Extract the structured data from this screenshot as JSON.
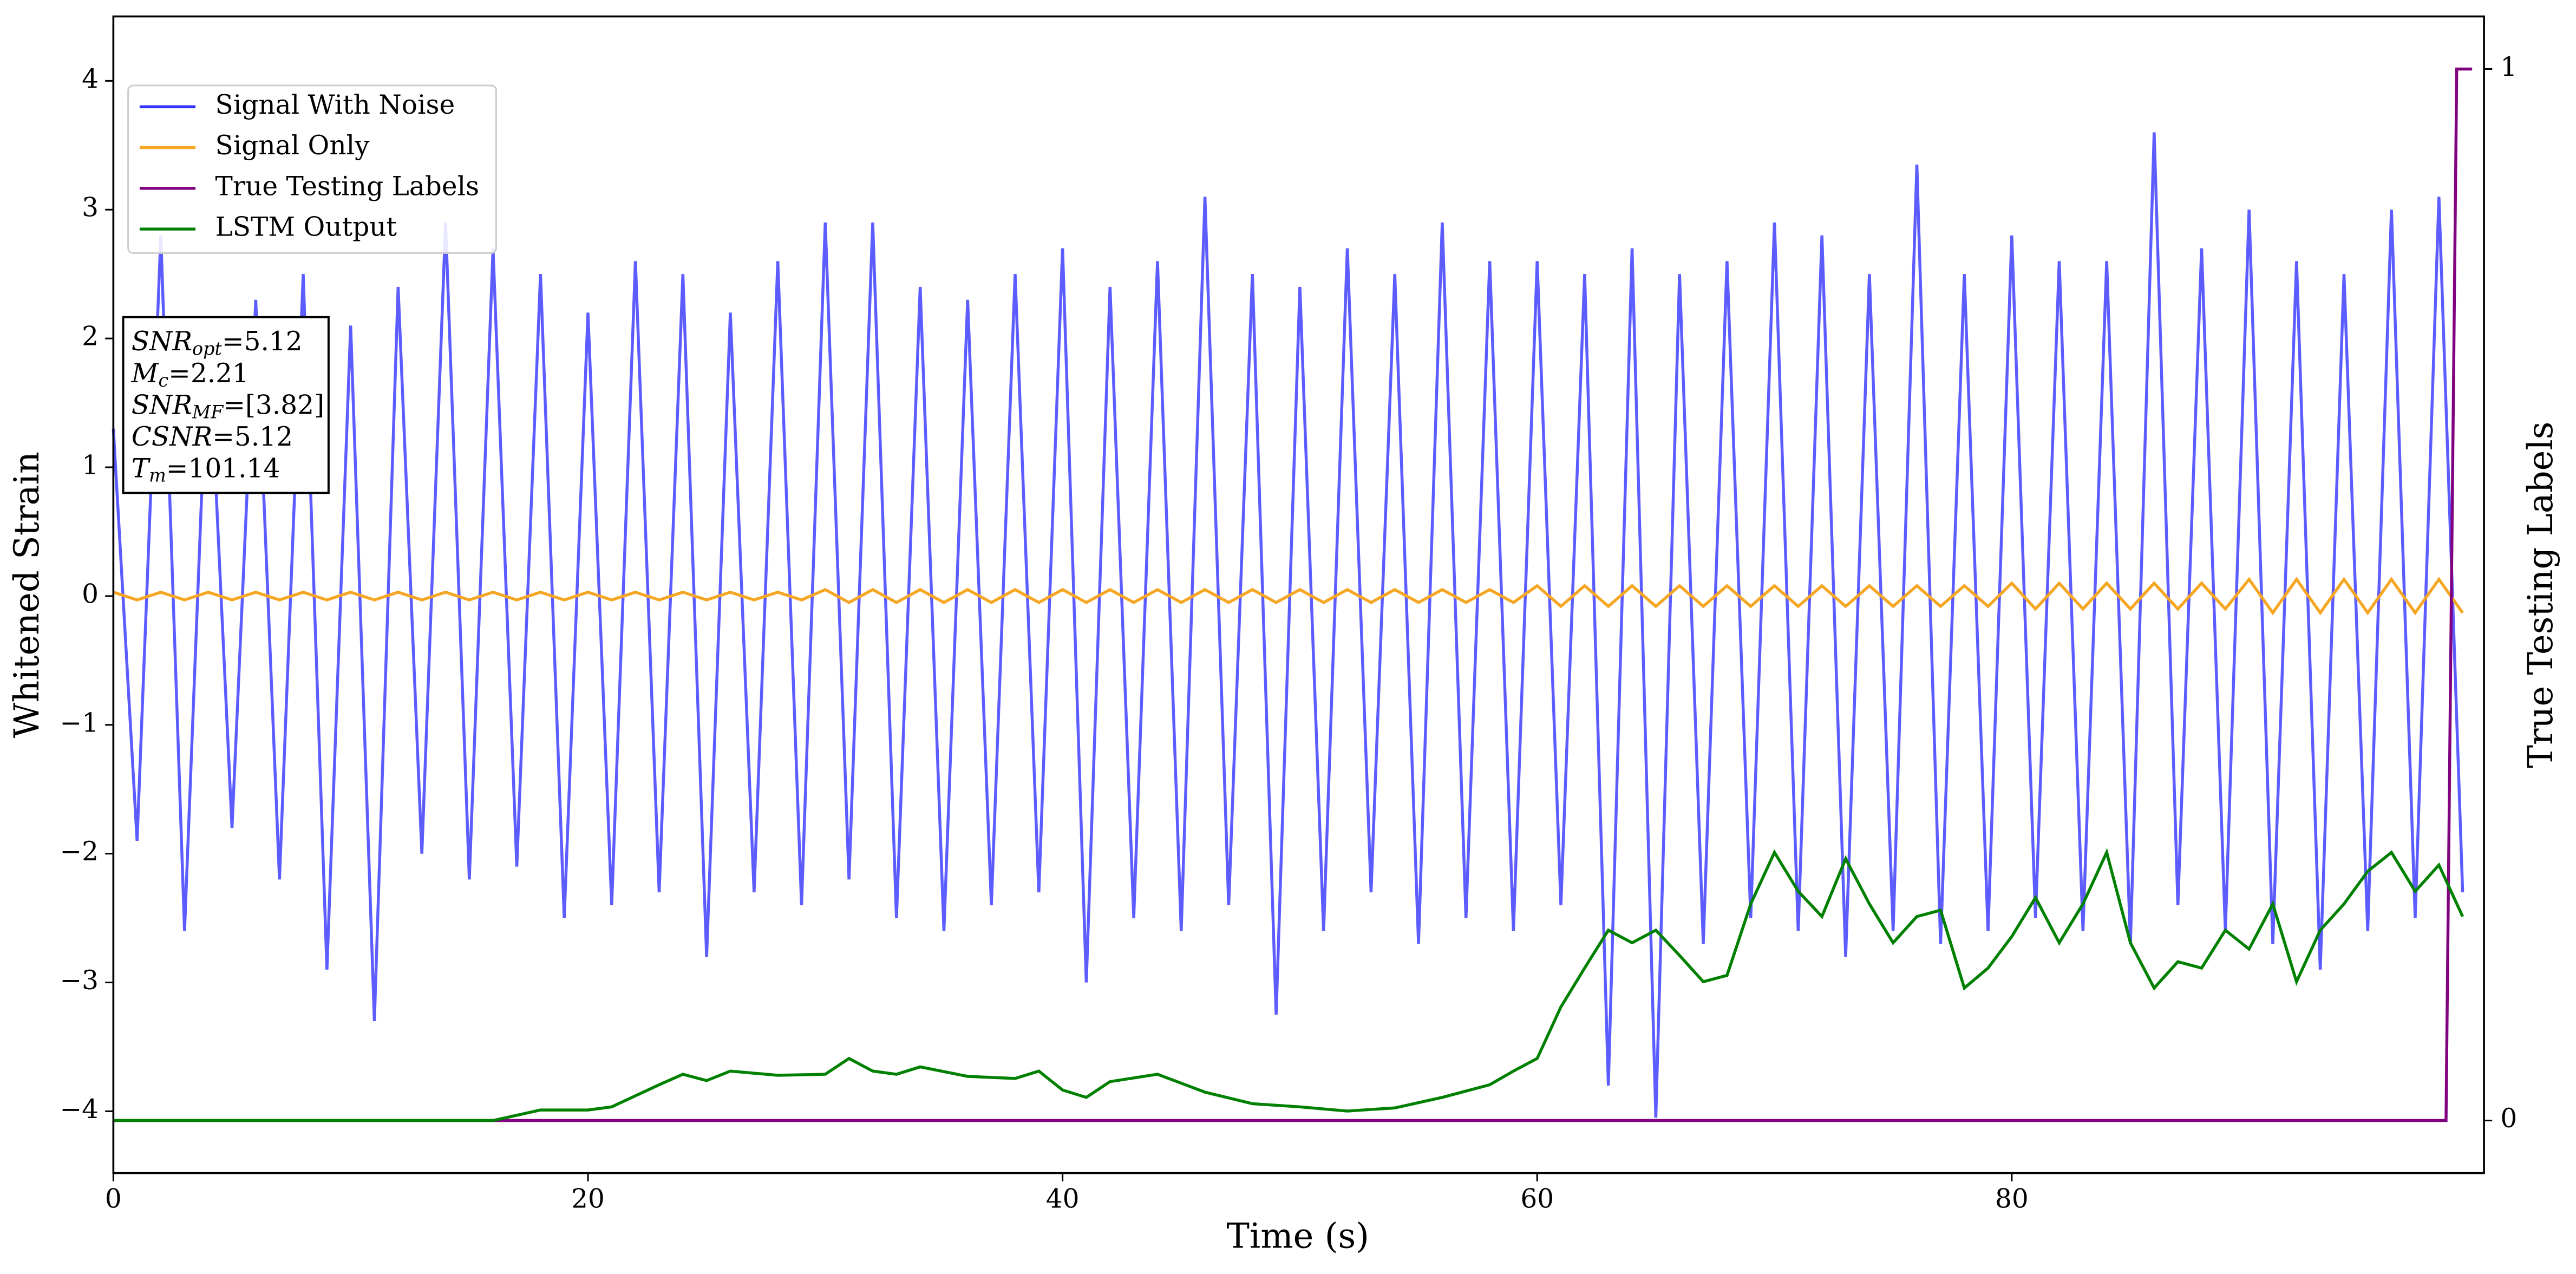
{
  "chart_data": {
    "type": "line",
    "xlabel": "Time (s)",
    "ylabel": "Whitened Strain",
    "y2label": "True Testing Labels",
    "xlim": [
      0,
      99.9
    ],
    "ylim": [
      -4.48,
      4.5
    ],
    "y2lim": [
      -0.05,
      1.05
    ],
    "xticks": [
      0,
      20,
      40,
      60,
      80
    ],
    "yticks": [
      {
        "value": -4,
        "label": "−4"
      },
      {
        "value": -3,
        "label": "−3"
      },
      {
        "value": -2,
        "label": "−2"
      },
      {
        "value": -1,
        "label": "−1"
      },
      0,
      1,
      2,
      3,
      4
    ],
    "y2ticks": [
      0,
      1
    ],
    "legend": "upper left",
    "annotation": [
      {
        "main": "SNR",
        "sub": "opt",
        "rest": "=5.12"
      },
      {
        "main": "M",
        "sub": "c",
        "rest": "=2.21"
      },
      {
        "main": "SNR",
        "sub": "MF",
        "rest": "=[3.82]"
      },
      {
        "main": "CSNR",
        "rest": "=5.12"
      },
      {
        "main": "T",
        "sub": "m",
        "rest": "=101.14"
      }
    ],
    "series": [
      {
        "name": "Signal With Noise",
        "color": "#3333ff",
        "x": [
          0,
          1,
          2,
          3,
          4,
          5,
          6,
          7,
          8,
          9,
          10,
          11,
          12,
          13,
          14,
          15,
          16,
          17,
          18,
          19,
          20,
          21,
          22,
          23,
          24,
          25,
          26,
          27,
          28,
          29,
          30,
          31,
          32,
          33,
          34,
          35,
          36,
          37,
          38,
          39,
          40,
          41,
          42,
          43,
          44,
          45,
          46,
          47,
          48,
          49,
          50,
          51,
          52,
          53,
          54,
          55,
          56,
          57,
          58,
          59,
          60,
          61,
          62,
          63,
          64,
          65,
          66,
          67,
          68,
          69,
          70,
          71,
          72,
          73,
          74,
          75,
          76,
          77,
          78,
          79,
          80,
          81,
          82,
          83,
          84,
          85,
          86,
          87,
          88,
          89,
          90,
          91,
          92,
          93,
          94,
          95,
          96,
          97,
          98,
          99
        ],
        "values": [
          1.3,
          -1.9,
          2.8,
          -2.6,
          2.1,
          -1.8,
          2.3,
          -2.2,
          2.5,
          -2.9,
          2.1,
          -3.3,
          2.4,
          -2.0,
          2.9,
          -2.2,
          2.7,
          -2.1,
          2.5,
          -2.5,
          2.2,
          -2.4,
          2.6,
          -2.3,
          2.5,
          -2.8,
          2.2,
          -2.3,
          2.6,
          -2.4,
          2.9,
          -2.2,
          2.9,
          -2.5,
          2.4,
          -2.6,
          2.3,
          -2.4,
          2.5,
          -2.3,
          2.7,
          -3.0,
          2.4,
          -2.5,
          2.6,
          -2.6,
          3.1,
          -2.4,
          2.5,
          -3.25,
          2.4,
          -2.6,
          2.7,
          -2.3,
          2.5,
          -2.7,
          2.9,
          -2.5,
          2.6,
          -2.6,
          2.6,
          -2.4,
          2.5,
          -3.8,
          2.7,
          -4.05,
          2.5,
          -2.7,
          2.6,
          -2.5,
          2.9,
          -2.6,
          2.8,
          -2.8,
          2.5,
          -2.6,
          3.35,
          -2.7,
          2.5,
          -2.6,
          2.8,
          -2.5,
          2.6,
          -2.6,
          2.6,
          -2.7,
          3.6,
          -2.4,
          2.7,
          -2.6,
          3.0,
          -2.7,
          2.6,
          -2.9,
          2.5,
          -2.6,
          3.0,
          -2.5,
          3.1,
          -2.3
        ]
      },
      {
        "name": "Signal Only",
        "color": "#f5a623",
        "x": [
          0,
          1,
          2,
          3,
          4,
          5,
          6,
          7,
          8,
          9,
          10,
          11,
          12,
          13,
          14,
          15,
          16,
          17,
          18,
          19,
          20,
          21,
          22,
          23,
          24,
          25,
          26,
          27,
          28,
          29,
          30,
          31,
          32,
          33,
          34,
          35,
          36,
          37,
          38,
          39,
          40,
          41,
          42,
          43,
          44,
          45,
          46,
          47,
          48,
          49,
          50,
          51,
          52,
          53,
          54,
          55,
          56,
          57,
          58,
          59,
          60,
          61,
          62,
          63,
          64,
          65,
          66,
          67,
          68,
          69,
          70,
          71,
          72,
          73,
          74,
          75,
          76,
          77,
          78,
          79,
          80,
          81,
          82,
          83,
          84,
          85,
          86,
          87,
          88,
          89,
          90,
          91,
          92,
          93,
          94,
          95,
          96,
          97,
          98,
          99
        ],
        "values": [
          0.03,
          -0.03,
          0.03,
          -0.03,
          0.03,
          -0.03,
          0.03,
          -0.03,
          0.03,
          -0.03,
          0.03,
          -0.03,
          0.03,
          -0.03,
          0.03,
          -0.03,
          0.03,
          -0.03,
          0.03,
          -0.03,
          0.03,
          -0.03,
          0.03,
          -0.03,
          0.03,
          -0.03,
          0.03,
          -0.03,
          0.03,
          -0.03,
          0.05,
          -0.05,
          0.05,
          -0.05,
          0.05,
          -0.05,
          0.05,
          -0.05,
          0.05,
          -0.05,
          0.05,
          -0.05,
          0.05,
          -0.05,
          0.05,
          -0.05,
          0.05,
          -0.05,
          0.05,
          -0.05,
          0.05,
          -0.05,
          0.05,
          -0.05,
          0.05,
          -0.05,
          0.05,
          -0.05,
          0.05,
          -0.05,
          0.08,
          -0.08,
          0.08,
          -0.08,
          0.08,
          -0.08,
          0.08,
          -0.08,
          0.08,
          -0.08,
          0.08,
          -0.08,
          0.08,
          -0.08,
          0.08,
          -0.08,
          0.08,
          -0.08,
          0.08,
          -0.08,
          0.1,
          -0.1,
          0.1,
          -0.1,
          0.1,
          -0.1,
          0.1,
          -0.1,
          0.1,
          -0.1,
          0.13,
          -0.13,
          0.13,
          -0.13,
          0.13,
          -0.13,
          0.13,
          -0.13,
          0.13,
          -0.13
        ]
      },
      {
        "name": "True Testing Labels",
        "color": "#800080",
        "axis": "y2",
        "x": [
          0,
          98.3,
          98.75,
          99.4
        ],
        "values": [
          0,
          0,
          1,
          1
        ]
      },
      {
        "name": "LSTM Output",
        "color": "#008000",
        "axis": "y2",
        "x": [
          0,
          16,
          18,
          20,
          21,
          23,
          24,
          25,
          26,
          28,
          30,
          31,
          32,
          33,
          34,
          36,
          38,
          39,
          40,
          41,
          42,
          44,
          46,
          48,
          50,
          52,
          54,
          56,
          58,
          59,
          60,
          61,
          62,
          63,
          64,
          65,
          66,
          67,
          68,
          69,
          70,
          71,
          72,
          73,
          74,
          75,
          76,
          77,
          78,
          79,
          80,
          81,
          82,
          83,
          84,
          85,
          86,
          87,
          88,
          89,
          90,
          91,
          92,
          93,
          94,
          95,
          96,
          97,
          98,
          99
        ],
        "values": [
          0,
          0,
          0.01,
          0.01,
          0.013,
          0.034,
          0.044,
          0.038,
          0.047,
          0.043,
          0.044,
          0.059,
          0.047,
          0.044,
          0.051,
          0.042,
          0.04,
          0.047,
          0.029,
          0.022,
          0.037,
          0.044,
          0.027,
          0.016,
          0.013,
          0.009,
          0.012,
          0.022,
          0.034,
          0.047,
          0.059,
          0.108,
          0.145,
          0.181,
          0.169,
          0.181,
          0.157,
          0.132,
          0.138,
          0.206,
          0.255,
          0.218,
          0.194,
          0.249,
          0.206,
          0.169,
          0.194,
          0.2,
          0.126,
          0.145,
          0.175,
          0.212,
          0.169,
          0.206,
          0.255,
          0.169,
          0.126,
          0.151,
          0.145,
          0.181,
          0.163,
          0.206,
          0.132,
          0.181,
          0.206,
          0.237,
          0.255,
          0.218,
          0.243,
          0.194
        ]
      }
    ]
  }
}
